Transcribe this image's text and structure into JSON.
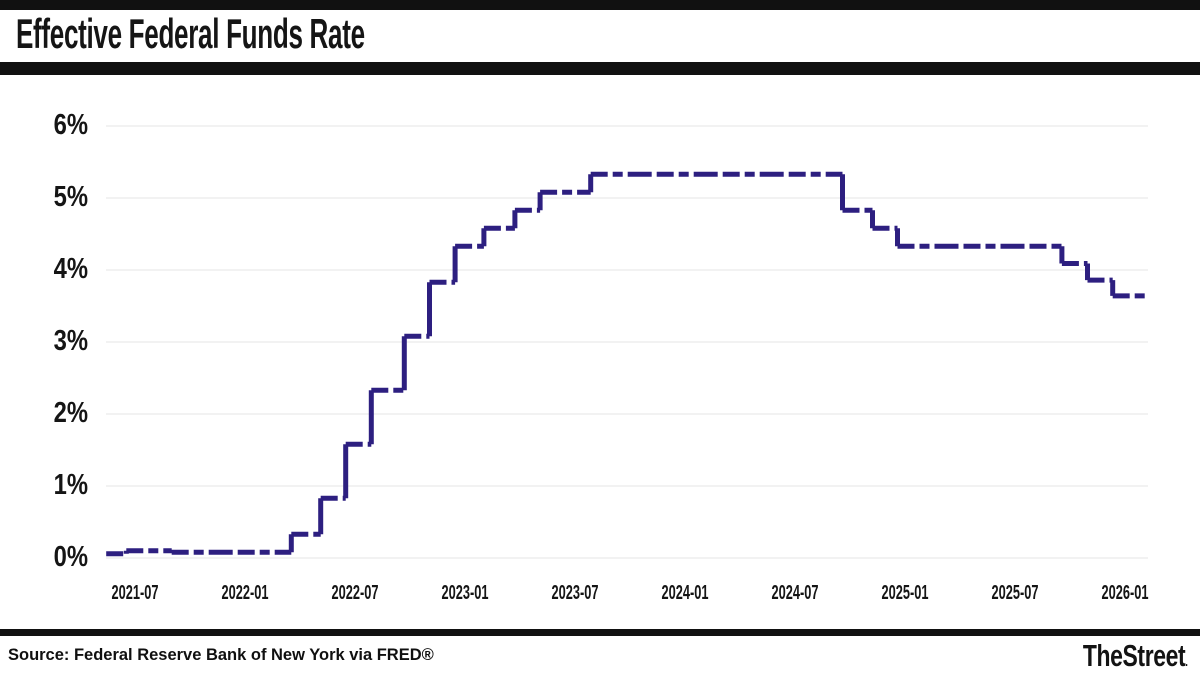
{
  "header": {
    "title": "Effective Federal Funds Rate"
  },
  "footer": {
    "source": "Source: Federal Reserve Bank of New York via FRED®",
    "brand": "TheStreet",
    "brand_suffix": "."
  },
  "colors": {
    "line": "#2d1f80",
    "grid": "#e4e4e4",
    "bars": "#111111",
    "text": "#151515",
    "background": "#ffffff"
  },
  "chart_data": {
    "type": "line",
    "subtype": "step",
    "title": "Effective Federal Funds Rate",
    "xlabel": "",
    "ylabel": "",
    "unit": "percent",
    "ylim": [
      0,
      6
    ],
    "grid": "horizontal",
    "legend_position": "none",
    "x_range": [
      "2021-05",
      "2026-02"
    ],
    "y_tick_labels": [
      "0%",
      "1%",
      "2%",
      "3%",
      "4%",
      "5%",
      "6%"
    ],
    "x_tick_labels": [
      "2021-07",
      "2022-01",
      "2022-07",
      "2023-01",
      "2023-07",
      "2024-01",
      "2024-07",
      "2025-01",
      "2025-07",
      "2026-01"
    ],
    "series": [
      {
        "name": "Effective Federal Funds Rate",
        "points": [
          [
            "2021-05-14",
            0.06
          ],
          [
            "2021-06-17",
            0.1
          ],
          [
            "2021-09-01",
            0.08
          ],
          [
            "2022-03-17",
            0.33
          ],
          [
            "2022-05-05",
            0.83
          ],
          [
            "2022-06-16",
            1.58
          ],
          [
            "2022-07-28",
            2.33
          ],
          [
            "2022-09-22",
            3.08
          ],
          [
            "2022-11-03",
            3.83
          ],
          [
            "2022-12-15",
            4.33
          ],
          [
            "2023-02-02",
            4.58
          ],
          [
            "2023-03-23",
            4.83
          ],
          [
            "2023-05-04",
            5.08
          ],
          [
            "2023-07-27",
            5.33
          ],
          [
            "2024-09-19",
            4.83
          ],
          [
            "2024-11-08",
            4.58
          ],
          [
            "2024-12-19",
            4.33
          ],
          [
            "2025-09-18",
            4.09
          ],
          [
            "2025-10-30",
            3.86
          ],
          [
            "2025-12-11",
            3.64
          ],
          [
            "2026-02-13",
            3.64
          ]
        ]
      }
    ]
  }
}
